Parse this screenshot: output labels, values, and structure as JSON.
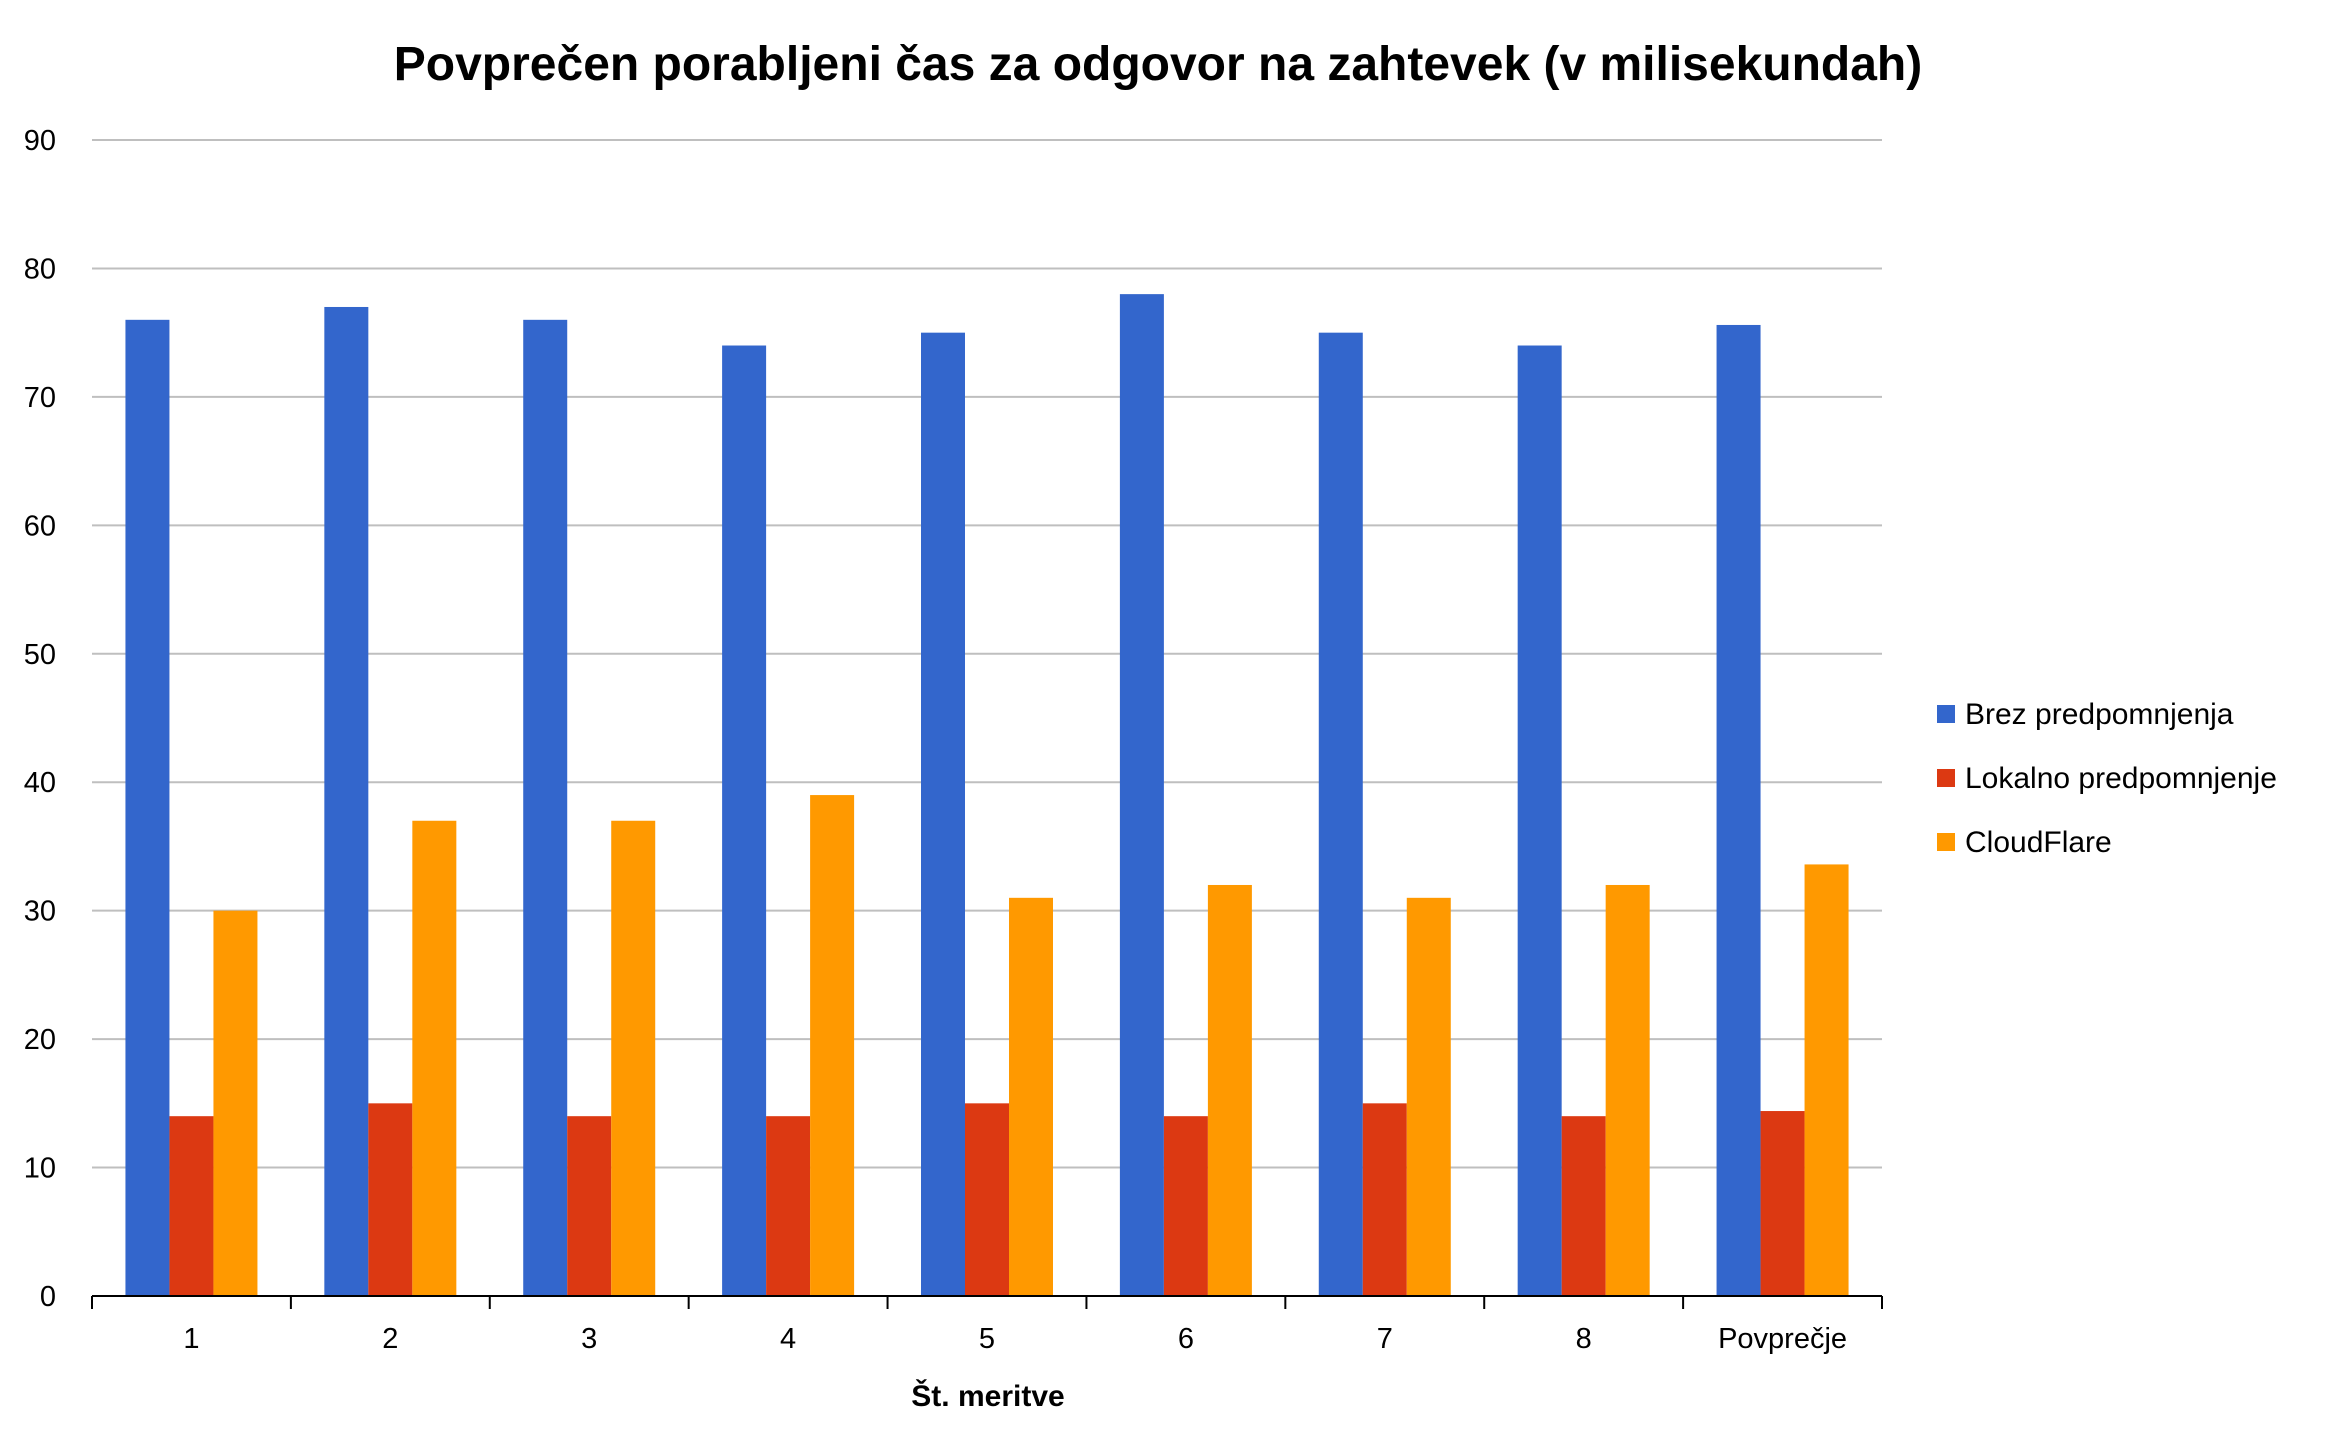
{
  "chart_data": {
    "type": "bar",
    "title": "Povprečen porabljeni čas za odgovor na zahtevek (v milisekundah)",
    "xlabel": "Št. meritve",
    "ylabel": "",
    "ylim": [
      0,
      90
    ],
    "yticks": [
      0,
      10,
      20,
      30,
      40,
      50,
      60,
      70,
      80,
      90
    ],
    "grid": true,
    "legend_position": "right",
    "categories": [
      "1",
      "2",
      "3",
      "4",
      "5",
      "6",
      "7",
      "8",
      "Povprečje"
    ],
    "series": [
      {
        "name": "Brez predpomnjenja",
        "color": "#3366cc",
        "values": [
          76,
          77,
          76,
          74,
          75,
          78,
          75,
          74,
          75.6
        ]
      },
      {
        "name": "Lokalno predpomnjenje",
        "color": "#dc3912",
        "values": [
          14,
          15,
          14,
          14,
          15,
          14,
          15,
          14,
          14.4
        ]
      },
      {
        "name": "CloudFlare",
        "color": "#ff9900",
        "values": [
          30,
          37,
          37,
          39,
          31,
          32,
          31,
          32,
          33.6
        ]
      }
    ]
  }
}
